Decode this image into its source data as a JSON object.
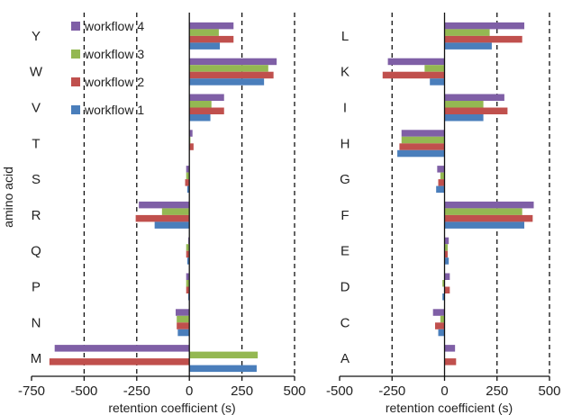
{
  "chart_data": [
    {
      "type": "bar",
      "orientation": "horizontal",
      "categories": [
        "Y",
        "W",
        "V",
        "T",
        "S",
        "R",
        "Q",
        "P",
        "N",
        "M"
      ],
      "xlabel": "retention coefficient (s)",
      "ylabel": "amino acid",
      "xlim": [
        -750,
        500
      ],
      "xticks": [
        "-750",
        "-500",
        "-250",
        "0",
        "250",
        "500"
      ],
      "reference_lines": [
        -500,
        -250,
        250,
        500
      ],
      "legend_position": "top-left",
      "series": [
        {
          "name": "workflow 4",
          "color": "#7f5fa6",
          "values": [
            210,
            415,
            165,
            15,
            -15,
            -240,
            -5,
            -15,
            -65,
            -640
          ]
        },
        {
          "name": "workflow 3",
          "color": "#94b852",
          "values": [
            140,
            375,
            105,
            5,
            -15,
            -130,
            -15,
            -15,
            -60,
            325
          ]
        },
        {
          "name": "workflow 2",
          "color": "#c0504d",
          "values": [
            210,
            400,
            165,
            20,
            -20,
            -255,
            -15,
            -15,
            -60,
            -665
          ]
        },
        {
          "name": "workflow 1",
          "color": "#4a7ebb",
          "values": [
            145,
            355,
            100,
            0,
            -10,
            -165,
            -10,
            -5,
            -55,
            320
          ]
        }
      ]
    },
    {
      "type": "bar",
      "orientation": "horizontal",
      "categories": [
        "L",
        "K",
        "I",
        "H",
        "G",
        "F",
        "E",
        "D",
        "C",
        "A"
      ],
      "xlabel": "retention coefficient (s)",
      "ylabel": "",
      "xlim": [
        -500,
        500
      ],
      "xticks": [
        "-500",
        "-250",
        "0",
        "250",
        "500"
      ],
      "reference_lines": [
        -250,
        250,
        500
      ],
      "series": [
        {
          "name": "workflow 4",
          "color": "#7f5fa6",
          "values": [
            380,
            -270,
            285,
            -205,
            -35,
            425,
            20,
            25,
            -55,
            50
          ]
        },
        {
          "name": "workflow 3",
          "color": "#94b852",
          "values": [
            215,
            -95,
            185,
            -205,
            -20,
            370,
            15,
            -10,
            -20,
            0
          ]
        },
        {
          "name": "workflow 2",
          "color": "#c0504d",
          "values": [
            370,
            -295,
            300,
            -215,
            -30,
            420,
            15,
            25,
            -45,
            55
          ]
        },
        {
          "name": "workflow 1",
          "color": "#4a7ebb",
          "values": [
            225,
            -70,
            185,
            -225,
            -40,
            380,
            20,
            -10,
            -30,
            0
          ]
        }
      ]
    }
  ]
}
